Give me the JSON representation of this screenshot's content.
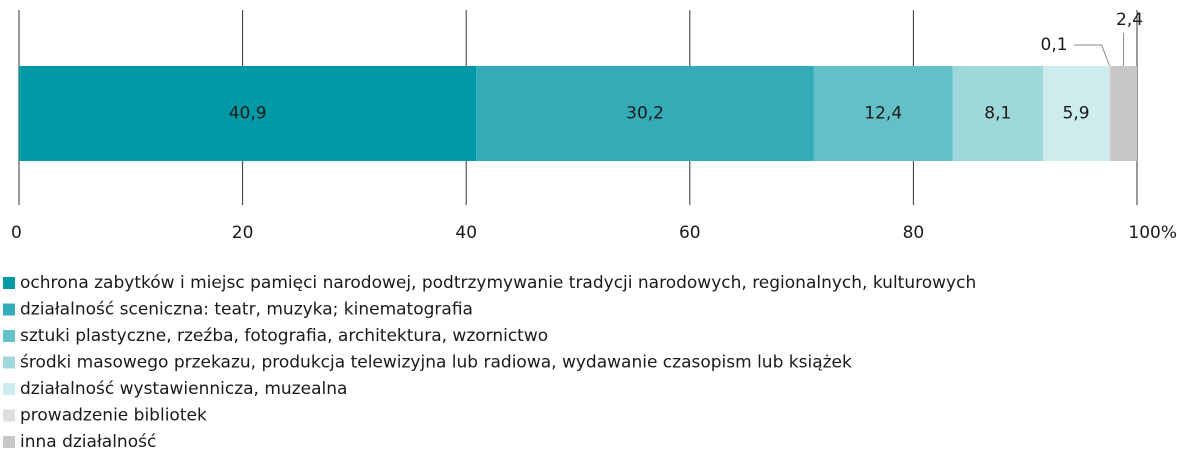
{
  "chart_data": {
    "type": "stacked-bar",
    "series": [
      {
        "name": "ochrona zabytków i miejsc pamięci narodowej, podtrzymywanie tradycji narodowych, regionalnych, kulturowych",
        "color": "#009aa6",
        "values": [
          40.9
        ],
        "value_labels": [
          "40,9"
        ]
      },
      {
        "name": "działalność sceniczna: teatr, muzyka; kinematografia",
        "color": "#33acb8",
        "values": [
          30.2
        ],
        "value_labels": [
          "30,2"
        ]
      },
      {
        "name": "sztuki plastyczne, rzeźba, fotografia, architektura, wzornictwo",
        "color": "#63c0c6",
        "values": [
          12.4
        ],
        "value_labels": [
          "12,4"
        ]
      },
      {
        "name": "środki masowego przekazu, produkcja telewizyjna lub radiowa, wydawanie czasopism lub książek",
        "color": "#9ed8da",
        "values": [
          8.1
        ],
        "value_labels": [
          "8,1"
        ]
      },
      {
        "name": "działalność wystawiennicza, muzealna",
        "color": "#cdeced",
        "values": [
          5.9
        ],
        "value_labels": [
          "5,9"
        ]
      },
      {
        "name": "prowadzenie bibliotek",
        "color": "#dedede",
        "values": [
          0.1
        ],
        "value_labels": [
          "0,1"
        ]
      },
      {
        "name": "inna działalność",
        "color": "#c6c6c6",
        "values": [
          2.4
        ],
        "value_labels": [
          "2,4"
        ]
      }
    ],
    "xlim": [
      0,
      100
    ],
    "xticks": [
      0,
      20,
      40,
      60,
      80,
      {
        "value": 100,
        "label": "100%"
      }
    ],
    "grid": true
  }
}
